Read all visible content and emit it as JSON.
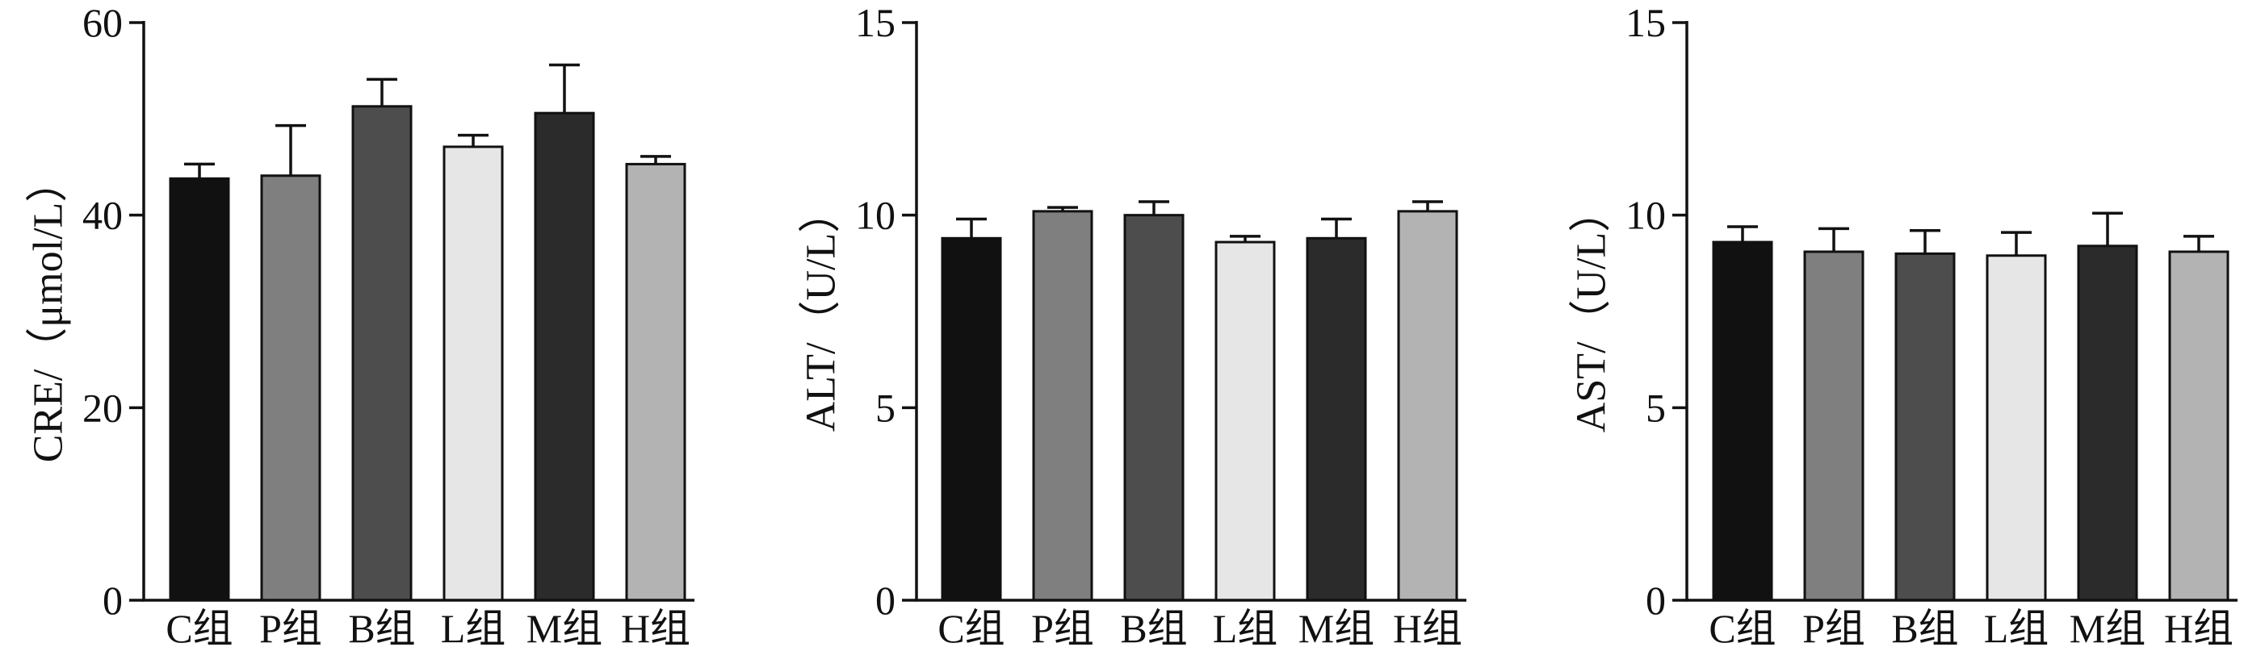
{
  "chart_data": [
    {
      "type": "bar",
      "categories": [
        "C组",
        "P组",
        "B组",
        "L组",
        "M组",
        "H组"
      ],
      "values": [
        43.8,
        44.1,
        51.3,
        47.1,
        50.6,
        45.3
      ],
      "errors": [
        1.5,
        5.2,
        2.8,
        1.2,
        5.0,
        0.8
      ],
      "ylabel": "CRE/（μmol/L）",
      "ylim": [
        0,
        60
      ],
      "yticks": [
        "0",
        "20",
        "40",
        "60"
      ],
      "grid": false,
      "error_bars": "upper"
    },
    {
      "type": "bar",
      "categories": [
        "C组",
        "P组",
        "B组",
        "L组",
        "M组",
        "H组"
      ],
      "values": [
        9.4,
        10.1,
        10.0,
        9.3,
        9.4,
        10.1
      ],
      "errors": [
        0.5,
        0.1,
        0.35,
        0.15,
        0.5,
        0.25
      ],
      "ylabel": "ALT/（U/L）",
      "ylim": [
        0,
        15
      ],
      "yticks": [
        "0",
        "5",
        "10",
        "15"
      ],
      "grid": false,
      "error_bars": "upper"
    },
    {
      "type": "bar",
      "categories": [
        "C组",
        "P组",
        "B组",
        "L组",
        "M组",
        "H组"
      ],
      "values": [
        9.3,
        9.05,
        9.0,
        8.95,
        9.2,
        9.05
      ],
      "errors": [
        0.4,
        0.6,
        0.6,
        0.6,
        0.85,
        0.4
      ],
      "ylabel": "AST/（U/L）",
      "ylim": [
        0,
        15
      ],
      "yticks": [
        "0",
        "5",
        "10",
        "15"
      ],
      "grid": false,
      "error_bars": "upper"
    }
  ],
  "colors": {
    "bar_fills": [
      "#111111",
      "#7f7f7f",
      "#4d4d4d",
      "#e6e6e6",
      "#2b2b2b",
      "#b3b3b3"
    ],
    "outline": "#111111",
    "axis": "#111111"
  }
}
